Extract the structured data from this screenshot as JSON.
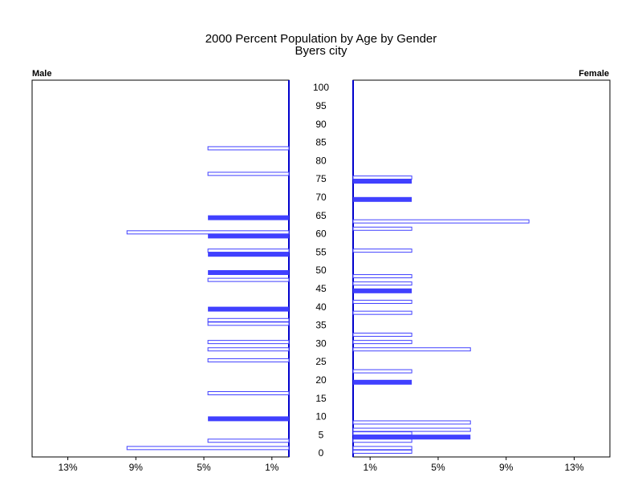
{
  "chart_data": {
    "type": "pyramid",
    "title": "2000 Percent Population by Age by Gender",
    "subtitle": "Byers city",
    "ylim": [
      0,
      100
    ],
    "yticks": [
      0,
      5,
      10,
      15,
      20,
      25,
      30,
      35,
      40,
      45,
      50,
      55,
      60,
      65,
      70,
      75,
      80,
      85,
      90,
      95,
      100
    ],
    "xlim": [
      0,
      15.1
    ],
    "xticks": [
      {
        "value": 1,
        "label": "1%"
      },
      {
        "value": 5,
        "label": "5%"
      },
      {
        "value": 9,
        "label": "9%"
      },
      {
        "value": 13,
        "label": "13%"
      }
    ],
    "series": [
      {
        "name": "Male",
        "color": "#4040ff",
        "side": "left",
        "ages": [
          84,
          77,
          65,
          61,
          60,
          56,
          55,
          50,
          48,
          40,
          37,
          36,
          31,
          29,
          26,
          17,
          10,
          4,
          2
        ],
        "values": [
          4.76,
          4.76,
          4.76,
          9.52,
          4.76,
          4.76,
          4.76,
          4.76,
          4.76,
          4.76,
          4.76,
          4.76,
          4.76,
          4.76,
          4.76,
          4.76,
          4.76,
          4.76,
          9.52
        ]
      },
      {
        "name": "Female",
        "color": "#4040ff",
        "side": "right",
        "ages": [
          76,
          75,
          70,
          64,
          62,
          56,
          49,
          47,
          45,
          42,
          39,
          33,
          31,
          29,
          23,
          20,
          9,
          7,
          6,
          5,
          4,
          2,
          1
        ],
        "values": [
          3.45,
          3.45,
          3.45,
          10.34,
          3.45,
          3.45,
          3.45,
          3.45,
          3.45,
          3.45,
          3.45,
          3.45,
          3.45,
          6.9,
          3.45,
          3.45,
          6.9,
          6.9,
          3.45,
          6.9,
          3.45,
          3.45,
          3.45
        ]
      }
    ]
  }
}
